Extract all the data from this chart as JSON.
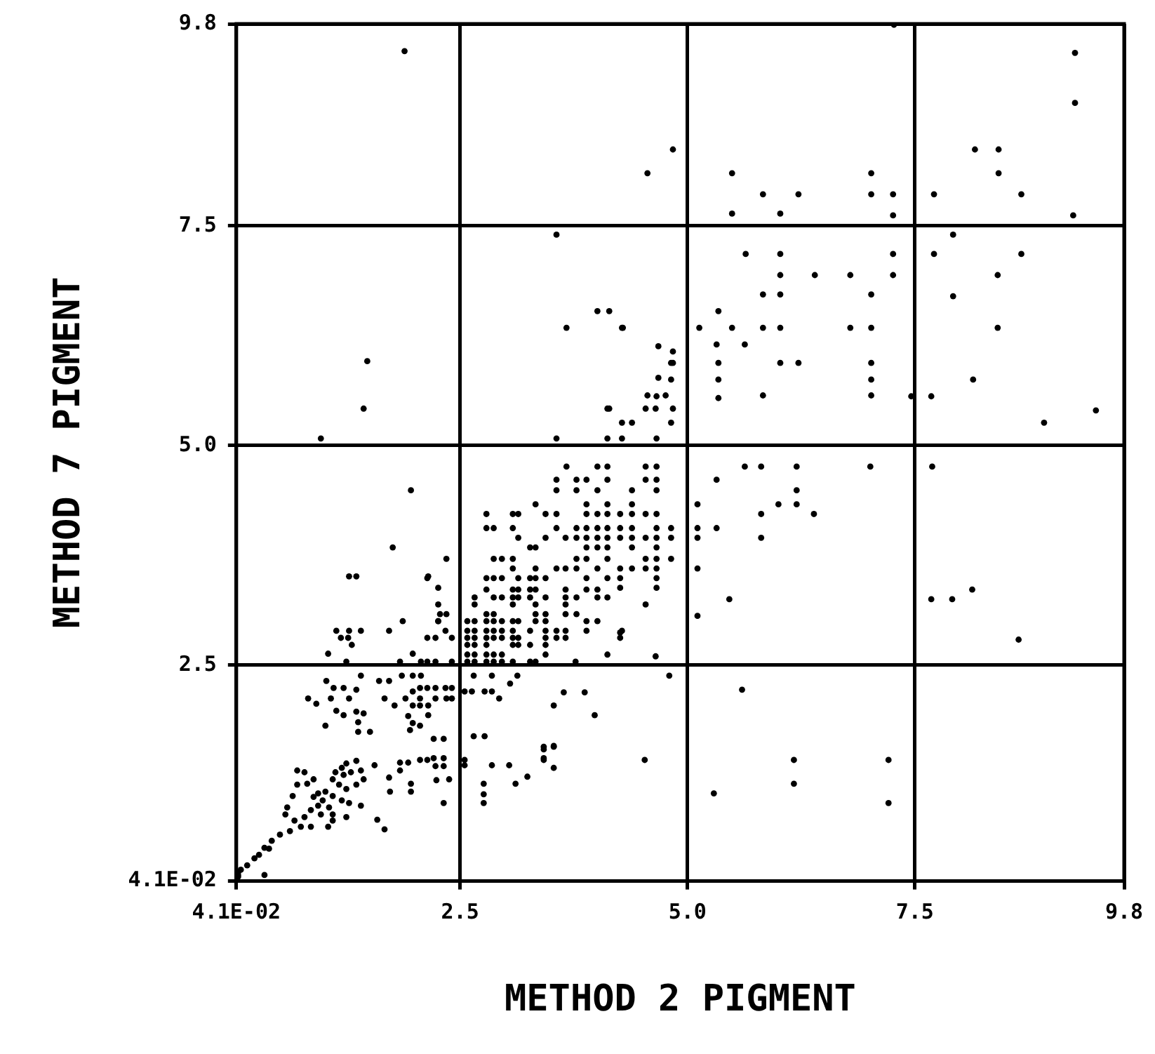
{
  "chart_data": {
    "type": "scatter",
    "xlabel": "METHOD 2 PIGMENT",
    "ylabel": "METHOD 7 PIGMENT",
    "color": "#000000",
    "marker": "circle",
    "grid": true,
    "legend": false,
    "xlim": [
      0.041,
      9.8
    ],
    "ylim": [
      0.041,
      9.8
    ],
    "xticks": [
      {
        "value": 0.041,
        "label": "4.1E-02"
      },
      2.5,
      {
        "value": 5,
        "label": "5.0"
      },
      7.5,
      9.8
    ],
    "yticks": [
      {
        "value": 0.041,
        "label": "4.1E-02"
      },
      2.5,
      {
        "value": 5,
        "label": "5.0"
      },
      7.5,
      9.8
    ],
    "x": [
      7.27,
      9.26,
      9.26,
      8.16,
      8.42,
      8.42,
      8.67,
      9.24,
      7.71,
      7.92,
      4.84,
      4.56,
      5.49,
      5.83,
      6.22,
      7.02,
      7.02,
      7.26,
      5.49,
      6.02,
      7.26,
      5.64,
      6.02,
      7.26,
      6.02,
      6.4,
      6.79,
      7.26,
      7.71,
      8.67,
      8.41,
      7.92,
      5.83,
      6.02,
      7.02,
      5.34,
      5.13,
      5.49,
      5.83,
      6.02,
      6.79,
      7.02,
      8.41,
      4.28,
      5.32,
      5.63,
      5.34,
      5.34,
      6.02,
      6.22,
      7.02,
      7.02,
      5.34,
      5.83,
      7.02,
      7.46,
      7.68,
      4.76,
      4.65,
      4.84,
      4.56,
      4.84,
      4.68,
      4.84,
      9.49,
      8.92,
      8.14,
      4.54,
      4.66,
      4.54,
      4.66,
      4.39,
      4.66,
      4.39,
      4.26,
      4.39,
      4.54,
      4.66,
      4.26,
      4.39,
      4.66,
      4.82,
      4.26,
      4.39,
      4.54,
      4.66,
      4.82,
      4.39,
      4.66,
      4.54,
      4.66,
      4.82,
      4.26,
      4.39,
      4.54,
      4.66,
      4.26,
      4.66,
      4.26,
      4.66,
      4.54,
      4.26,
      4.26,
      4.65,
      4.8,
      5.63,
      5.81,
      6.2,
      7.01,
      7.69,
      5.32,
      6.2,
      5.11,
      6.0,
      6.2,
      5.81,
      6.39,
      5.11,
      5.32,
      5.11,
      5.81,
      5.11,
      5.46,
      5.11,
      7.68,
      7.91,
      8.13,
      8.64,
      5.6,
      4.53,
      6.17,
      7.21,
      6.17,
      5.29,
      7.21,
      4.68,
      4.82,
      4.82,
      4.66,
      4.54,
      4.12,
      4.28,
      4.39,
      4.82,
      3.56,
      4.12,
      4.28,
      4.66,
      3.67,
      4.01,
      4.12,
      3.56,
      3.78,
      3.89,
      4.12,
      3.56,
      3.78,
      4.01,
      3.33,
      3.89,
      4.12,
      2.79,
      3.08,
      3.14,
      3.44,
      3.56,
      3.89,
      4.01,
      4.12,
      2.79,
      2.87,
      3.08,
      3.56,
      3.78,
      3.89,
      4.01,
      4.12,
      3.14,
      3.44,
      3.66,
      3.78,
      3.89,
      4.01,
      4.12,
      3.27,
      3.33,
      3.89,
      4.01,
      4.12,
      2.87,
      2.96,
      3.08,
      3.78,
      3.89,
      4.12,
      3.08,
      3.33,
      3.56,
      3.66,
      3.78,
      4.01,
      2.79,
      2.87,
      2.96,
      3.14,
      3.27,
      3.33,
      3.44,
      3.89,
      4.12,
      2.79,
      3.08,
      3.14,
      3.27,
      3.33,
      3.66,
      3.89,
      4.01,
      2.66,
      2.87,
      2.96,
      3.08,
      3.14,
      3.27,
      3.44,
      3.66,
      3.78,
      4.01,
      4.12,
      2.66,
      3.08,
      3.33,
      3.66,
      2.79,
      2.87,
      3.33,
      3.44,
      3.66,
      3.78,
      2.58,
      2.66,
      2.79,
      2.87,
      2.96,
      3.08,
      3.14,
      3.33,
      3.44,
      3.89,
      4.01,
      2.58,
      2.66,
      2.79,
      2.87,
      2.96,
      3.08,
      3.27,
      3.44,
      3.56,
      3.66,
      3.89,
      4.28,
      2.58,
      2.66,
      2.79,
      2.87,
      2.96,
      3.08,
      3.14,
      3.44,
      3.56,
      3.66,
      2.58,
      2.66,
      2.79,
      3.08,
      3.14,
      3.27,
      3.44,
      2.58,
      2.66,
      2.79,
      2.87,
      2.96,
      3.44,
      4.12,
      2.58,
      2.66,
      2.79,
      2.87,
      2.96,
      3.08,
      3.27,
      3.33,
      3.77,
      2.07,
      2.14,
      2.23,
      2.41,
      2.28,
      2.35,
      2.26,
      2.14,
      2.35,
      2.65,
      2.85,
      3.13,
      2.55,
      2.63,
      2.77,
      2.85,
      2.93,
      3.05,
      3.64,
      3.87,
      3.53,
      3.98,
      2.77,
      3.53,
      3.42,
      3.42,
      2.06,
      2.14,
      2.23,
      2.34,
      2.41,
      2.06,
      2.23,
      2.35,
      2.41,
      2.06,
      2.15,
      2.15,
      2.06,
      2.21,
      2.32,
      2.21,
      2.32,
      1.89,
      1.48,
      1.44,
      0.97,
      1.96,
      1.76,
      3.67,
      4.01,
      4.14,
      4.29,
      3.56,
      4.14,
      1.28,
      1.36,
      2.15,
      2.26,
      2.26,
      1.87,
      2.26,
      1.14,
      1.28,
      1.41,
      1.72,
      2.14,
      2.23,
      2.34,
      2.41,
      1.19,
      1.27,
      1.31,
      1.05,
      1.25,
      1.84,
      1.98,
      1.03,
      1.41,
      1.11,
      1.22,
      1.36,
      0.83,
      0.92,
      1.08,
      1.28,
      1.61,
      1.72,
      1.86,
      1.98,
      2.07,
      1.67,
      1.78,
      1.9,
      1.98,
      1.14,
      1.22,
      1.36,
      1.44,
      1.98,
      1.02,
      1.38,
      1.38,
      1.51,
      1.93,
      1.95,
      1.98,
      2.65,
      1.84,
      1.93,
      2.06,
      2.14,
      1.84,
      1.56,
      1.72,
      2.23,
      2.32,
      2.24,
      2.38,
      1.73,
      1.96,
      1.96,
      2.32,
      2.55,
      2.55,
      2.85,
      2.76,
      2.76,
      2.76,
      3.04,
      3.11,
      3.24,
      3.42,
      3.42,
      3.53,
      3.53,
      1.25,
      1.36,
      1.41,
      1.22,
      1.13,
      1.1,
      1.17,
      1.25,
      1.36,
      1.44,
      1.3,
      1.2,
      1.02,
      0.94,
      0.89,
      0.99,
      1.1,
      1.2,
      1.28,
      1.06,
      0.94,
      0.86,
      0.97,
      1.1,
      0.79,
      0.68,
      0.75,
      0.86,
      0.63,
      0.52,
      0.43,
      0.35,
      0.29,
      0.4,
      0.24,
      0.16,
      0.09,
      0.06,
      0.06,
      0.06,
      0.35,
      1.67,
      1.59,
      1.41,
      1.1,
      1.25,
      1.05,
      0.79,
      0.71,
      0.89,
      0.82,
      0.71,
      0.6,
      0.58,
      0.66
    ],
    "values": [
      9.79,
      9.47,
      8.9,
      8.37,
      8.37,
      8.1,
      7.86,
      7.62,
      7.86,
      7.4,
      8.37,
      8.1,
      8.1,
      7.86,
      7.86,
      8.1,
      7.86,
      7.86,
      7.64,
      7.64,
      7.62,
      7.18,
      7.18,
      7.18,
      6.94,
      6.94,
      6.94,
      6.94,
      7.18,
      7.18,
      6.94,
      6.7,
      6.72,
      6.72,
      6.72,
      6.53,
      6.34,
      6.34,
      6.34,
      6.34,
      6.34,
      6.34,
      6.34,
      6.34,
      6.15,
      6.15,
      5.94,
      5.75,
      5.94,
      5.94,
      5.94,
      5.75,
      5.54,
      5.57,
      5.57,
      5.56,
      5.56,
      5.57,
      5.42,
      5.42,
      5.57,
      5.94,
      5.77,
      6.07,
      5.4,
      5.26,
      5.75,
      4.76,
      4.76,
      4.61,
      4.61,
      4.49,
      4.49,
      4.33,
      4.22,
      4.22,
      4.22,
      4.22,
      4.06,
      4.06,
      4.06,
      4.06,
      3.95,
      3.95,
      3.95,
      3.95,
      3.95,
      3.84,
      3.84,
      3.71,
      3.71,
      3.71,
      3.6,
      3.6,
      3.6,
      3.6,
      3.49,
      3.49,
      3.38,
      3.38,
      3.19,
      2.87,
      2.81,
      2.6,
      2.38,
      4.76,
      4.76,
      4.76,
      4.76,
      4.76,
      4.61,
      4.49,
      4.33,
      4.33,
      4.33,
      4.22,
      4.22,
      4.06,
      4.06,
      3.95,
      3.95,
      3.6,
      3.25,
      3.06,
      3.25,
      3.25,
      3.36,
      2.79,
      2.22,
      1.42,
      1.42,
      1.42,
      1.15,
      1.04,
      0.93,
      6.13,
      5.94,
      5.75,
      5.56,
      5.42,
      5.42,
      5.26,
      5.26,
      5.26,
      5.08,
      5.08,
      5.08,
      5.08,
      4.76,
      4.76,
      4.76,
      4.61,
      4.61,
      4.61,
      4.61,
      4.49,
      4.49,
      4.49,
      4.33,
      4.33,
      4.33,
      4.22,
      4.22,
      4.22,
      4.22,
      4.22,
      4.22,
      4.22,
      4.22,
      4.06,
      4.06,
      4.06,
      4.06,
      4.06,
      4.06,
      4.06,
      4.06,
      3.95,
      3.95,
      3.95,
      3.95,
      3.95,
      3.95,
      3.95,
      3.84,
      3.84,
      3.84,
      3.84,
      3.84,
      3.71,
      3.71,
      3.71,
      3.71,
      3.71,
      3.71,
      3.6,
      3.6,
      3.6,
      3.6,
      3.6,
      3.6,
      3.49,
      3.49,
      3.49,
      3.49,
      3.49,
      3.49,
      3.49,
      3.49,
      3.49,
      3.36,
      3.36,
      3.36,
      3.36,
      3.36,
      3.36,
      3.36,
      3.36,
      3.27,
      3.27,
      3.27,
      3.27,
      3.27,
      3.27,
      3.27,
      3.27,
      3.27,
      3.27,
      3.27,
      3.19,
      3.19,
      3.19,
      3.19,
      3.08,
      3.08,
      3.08,
      3.08,
      3.08,
      3.08,
      3.0,
      3.0,
      3.0,
      3.0,
      3.0,
      3.0,
      3.0,
      3.0,
      3.0,
      3.0,
      3.0,
      2.89,
      2.89,
      2.89,
      2.89,
      2.89,
      2.89,
      2.89,
      2.89,
      2.89,
      2.89,
      2.89,
      2.89,
      2.81,
      2.81,
      2.81,
      2.81,
      2.81,
      2.81,
      2.81,
      2.81,
      2.81,
      2.81,
      2.73,
      2.73,
      2.73,
      2.73,
      2.73,
      2.73,
      2.73,
      2.62,
      2.62,
      2.62,
      2.62,
      2.62,
      2.62,
      2.62,
      2.54,
      2.54,
      2.54,
      2.54,
      2.54,
      2.54,
      2.54,
      2.54,
      2.54,
      2.54,
      2.54,
      2.54,
      2.54,
      3.08,
      3.08,
      3.38,
      3.49,
      3.71,
      2.38,
      2.38,
      2.38,
      2.2,
      2.2,
      2.2,
      2.2,
      2.12,
      2.29,
      2.19,
      2.19,
      2.04,
      1.93,
      1.69,
      1.58,
      1.54,
      1.44,
      2.24,
      2.24,
      2.24,
      2.24,
      2.24,
      2.12,
      2.12,
      2.12,
      2.12,
      2.04,
      2.04,
      1.93,
      1.81,
      1.66,
      1.66,
      1.44,
      1.44,
      9.49,
      5.96,
      5.42,
      5.08,
      4.49,
      3.84,
      6.34,
      6.53,
      6.53,
      6.34,
      7.4,
      5.42,
      3.51,
      3.51,
      3.51,
      3.19,
      3.0,
      3.0,
      3.0,
      2.89,
      2.89,
      2.89,
      2.89,
      2.81,
      2.81,
      2.89,
      2.81,
      2.81,
      2.81,
      2.73,
      2.63,
      2.54,
      2.54,
      2.63,
      2.32,
      2.38,
      2.24,
      2.24,
      2.22,
      2.12,
      2.06,
      2.12,
      2.12,
      2.32,
      2.32,
      2.38,
      2.38,
      2.38,
      2.12,
      2.04,
      2.12,
      2.2,
      1.98,
      1.93,
      1.97,
      1.95,
      2.04,
      1.81,
      1.85,
      1.74,
      1.74,
      1.92,
      1.76,
      1.84,
      1.69,
      1.39,
      1.39,
      1.42,
      1.42,
      1.3,
      1.36,
      1.22,
      1.35,
      1.35,
      1.19,
      1.2,
      1.06,
      1.06,
      1.15,
      0.93,
      1.36,
      1.42,
      1.36,
      1.15,
      1.03,
      0.93,
      1.36,
      1.15,
      1.23,
      1.57,
      1.42,
      1.57,
      1.33,
      1.38,
      1.41,
      1.3,
      1.25,
      1.28,
      1.2,
      1.14,
      1.09,
      1.14,
      1.2,
      1.28,
      1.33,
      1.06,
      1.04,
      1.0,
      0.96,
      1.01,
      0.96,
      0.93,
      0.88,
      0.9,
      0.85,
      0.8,
      0.8,
      0.77,
      0.73,
      0.66,
      0.66,
      0.61,
      0.57,
      0.5,
      0.42,
      0.34,
      0.41,
      0.3,
      0.22,
      0.17,
      0.14,
      0.11,
      0.09,
      0.11,
      0.63,
      0.74,
      0.9,
      0.73,
      0.77,
      0.66,
      1.28,
      1.3,
      1.2,
      1.15,
      1.14,
      0.88,
      0.8,
      1.01
    ]
  }
}
